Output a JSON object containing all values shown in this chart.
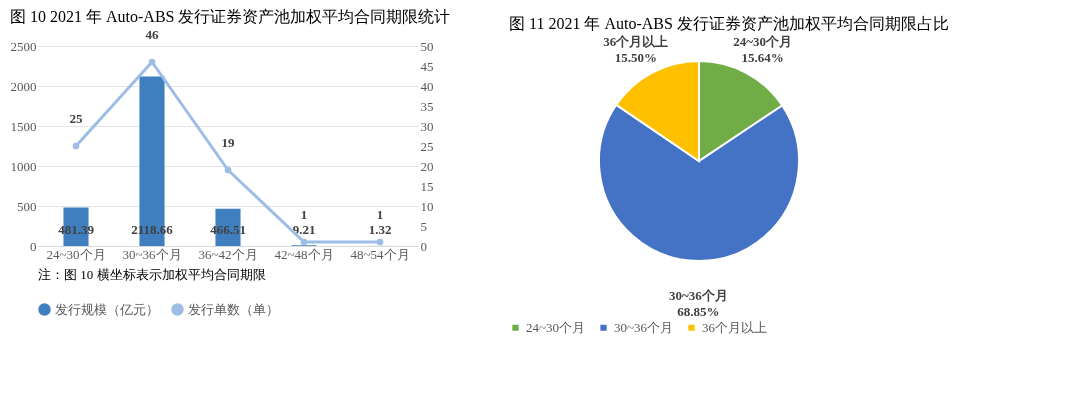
{
  "chart_data": [
    {
      "type": "bar",
      "title": "图 10   2021 年 Auto-ABS 发行证券资产池加权平均合同期限统计",
      "categories": [
        "24~30个月",
        "30~36个月",
        "36~42个月",
        "42~48个月",
        "48~54个月"
      ],
      "series": [
        {
          "name": "发行规模（亿元）",
          "type": "bar",
          "color": "#3f7fc0",
          "values": [
            481.39,
            2118.66,
            466.51,
            9.21,
            1.32
          ]
        },
        {
          "name": "发行单数（单）",
          "type": "line",
          "axis": "y2",
          "color": "#9dbde6",
          "values": [
            25,
            46,
            19,
            1,
            1
          ]
        }
      ],
      "ylim": [
        0,
        2500
      ],
      "yticks": [
        0,
        500,
        1000,
        1500,
        2000,
        2500
      ],
      "y2lim": [
        0,
        50
      ],
      "y2ticks": [
        0,
        5,
        10,
        15,
        20,
        25,
        30,
        35,
        40,
        45,
        50
      ],
      "grid": "y",
      "legend": "bottom",
      "marker": "circle",
      "line_style": "solid",
      "data_labels": true,
      "annotations": [
        "注：图 10 横坐标表示加权平均合同期限"
      ]
    },
    {
      "type": "pie",
      "title": "图 11   2021 年 Auto-ABS 发行证券资产池加权平均合同期限占比",
      "categories": [
        "24~30个月",
        "30~36个月",
        "36个月以上"
      ],
      "values": [
        15.64,
        68.85,
        15.5
      ],
      "colors": [
        "#70ad47",
        "#4472c4",
        "#ffc000"
      ],
      "value_labels": [
        "15.64%",
        "68.85%",
        "15.50%"
      ],
      "legend": "bottom"
    }
  ]
}
